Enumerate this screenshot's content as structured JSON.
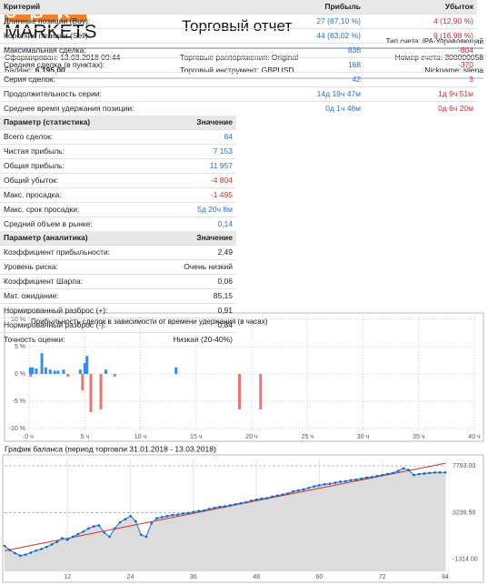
{
  "header": {
    "logo_top": "UBK",
    "logo_bottom": "MARKETS",
    "title": "Торговый отчет",
    "account_type": "Тип счета: iPA-Управляющий"
  },
  "info": {
    "generated": "Сформирован: 13.03.2018 09:44",
    "orders": "Торговые распоряжения: Original",
    "account_number": "Номер счета: 300000058",
    "balance_label": "Баланс:",
    "balance_value": "6 195,00",
    "instrument": "Торговый инструмент: GBPUSD",
    "nickname": "Nickname: silena"
  },
  "summary_table": {
    "header": [
      "Критерий",
      "Прибыль",
      "Убыток"
    ],
    "rows": [
      [
        "Длинные позиции (Buy):",
        "27 (87,10 %)",
        "4 (12,90 %)"
      ],
      [
        "Короткие позиции (Sell):",
        "44 (83,02 %)",
        "9 (16,98 %)"
      ],
      [
        "Максимальная сделка:",
        "836",
        "-804"
      ],
      [
        "Средняя сделка (в пунктах):",
        "168",
        "-370"
      ],
      [
        "Серия сделок:",
        "42",
        "3"
      ],
      [
        "Продолжительность серии:",
        "14д 19ч 47м",
        "1д 9ч 51м"
      ],
      [
        "Среднее время удержания позиции:",
        "0д 1ч 46м",
        "0д 6ч 20м"
      ]
    ]
  },
  "stats_table": {
    "header": [
      "Параметр (статистика)",
      "Значение"
    ],
    "rows": [
      [
        "Всего сделок:",
        "84"
      ],
      [
        "Чистая прибыль:",
        "7 153"
      ],
      [
        "Общая прибыль:",
        "11 957"
      ],
      [
        "Общий убыток:",
        "-4 804"
      ],
      [
        "Макс. просадка:",
        "-1 495"
      ],
      [
        "Макс. срок просадки:",
        "5д 20ч 8м"
      ],
      [
        "Средний объем в рынке:",
        "0,14"
      ]
    ]
  },
  "analytics_table": {
    "header": [
      "Параметр (аналитика)",
      "Значение"
    ],
    "rows": [
      [
        "Коэффициент прибыльности:",
        "2,49"
      ],
      [
        "Уровень риска:",
        "Очень низкий"
      ],
      [
        "Коэффициент Шарпа:",
        "0,06"
      ],
      [
        "Мат. ожидание:",
        "85,15"
      ],
      [
        "Нормированный разброс (+):",
        "0,91"
      ],
      [
        "Нормированный разброс (-):",
        "0,84"
      ],
      [
        "Точность оценки:",
        "Низкая (20-40%)"
      ]
    ]
  },
  "chart_data": [
    {
      "type": "bar",
      "title": "Прибыльность сделок в зависимости от времени удержания (в часах)",
      "xlim": [
        0,
        40
      ],
      "ylim": [
        -10.5,
        10.5
      ],
      "xticks": [
        {
          "value": 0,
          "label": "0 ч"
        },
        {
          "value": 5,
          "label": "5 ч"
        },
        {
          "value": 10,
          "label": "10 ч"
        },
        {
          "value": 15,
          "label": "15 ч"
        },
        {
          "value": 20,
          "label": "20 ч"
        },
        {
          "value": 25,
          "label": "25 ч"
        },
        {
          "value": 30,
          "label": "30 ч"
        },
        {
          "value": 35,
          "label": "35 ч"
        },
        {
          "value": 40,
          "label": "40 ч"
        }
      ],
      "yticks": [
        {
          "value": 10,
          "label": "10 %"
        },
        {
          "value": 5,
          "label": "5 %"
        },
        {
          "value": 0,
          "label": "0 %"
        },
        {
          "value": -5,
          "label": "-5 %"
        },
        {
          "value": -10,
          "label": "-10 %"
        }
      ],
      "grid": true,
      "series": [
        {
          "color": "#3c8ce6",
          "x": [
            0.1,
            0.3,
            0.65,
            1.15,
            1.5,
            1.9,
            2.3,
            2.6,
            3.1,
            4.6,
            5.0,
            5.2,
            6.9,
            13.2
          ],
          "values": [
            1.2,
            1.2,
            1.0,
            3.8,
            1.2,
            0.8,
            0.6,
            0.6,
            0.8,
            0.8,
            2.0,
            3.3,
            0.8,
            1.2
          ]
        },
        {
          "color": "#e87474",
          "x": [
            0.15,
            3.5,
            4.8,
            5.55,
            6.45,
            7.7,
            18.9,
            20.8
          ],
          "values": [
            -0.5,
            -0.5,
            -3,
            -7,
            -6.5,
            -0.5,
            -6.5,
            -6.5
          ]
        }
      ]
    },
    {
      "type": "line",
      "title": "График баланса (период торговли 31.01.2018 - 13.03.2018)",
      "x": [
        0,
        1,
        2,
        3,
        4,
        5,
        6,
        7,
        8,
        9,
        10,
        11,
        12,
        13,
        14,
        15,
        16,
        17,
        18,
        19,
        20,
        21,
        22,
        23,
        24,
        25,
        26,
        27,
        28,
        29,
        30,
        31,
        32,
        33,
        34,
        35,
        36,
        37,
        38,
        39,
        40,
        41,
        42,
        43,
        44,
        45,
        46,
        47,
        48,
        49,
        50,
        51,
        52,
        53,
        54,
        55,
        56,
        57,
        58,
        59,
        60,
        61,
        62,
        63,
        64,
        65,
        66,
        67,
        68,
        69,
        70,
        71,
        72,
        73,
        74,
        75,
        76,
        77,
        78,
        79,
        80,
        81,
        82,
        83,
        84
      ],
      "xlim": [
        0,
        84
      ],
      "xticks": [
        12,
        24,
        36,
        48,
        60,
        72,
        84
      ],
      "ylim": [
        -2475,
        8418
      ],
      "yticks": [
        {
          "value": 7793,
          "label": "7793.00"
        },
        {
          "value": 3239.5,
          "label": "3239.50"
        },
        {
          "value": -1314,
          "label": "-1314.00"
        }
      ],
      "grid": true,
      "trend_color": "#d03030",
      "area_color": "#dcdcdc",
      "series": [
        {
          "color": "#3c8ce6",
          "values": [
            0,
            -400,
            -700,
            -950,
            -850,
            -650,
            -450,
            -300,
            -100,
            150,
            400,
            750,
            600,
            900,
            1150,
            1400,
            1700,
            1900,
            2000,
            1300,
            900,
            1700,
            2300,
            2600,
            2900,
            2400,
            1100,
            900,
            2200,
            2700,
            2800,
            2900,
            3000,
            3050,
            3150,
            3200,
            3300,
            3400,
            3450,
            3600,
            3700,
            3800,
            3850,
            3950,
            4050,
            4150,
            4250,
            4400,
            4500,
            4600,
            4650,
            4800,
            4900,
            5000,
            5100,
            5300,
            5400,
            5500,
            5650,
            5800,
            5900,
            6000,
            6050,
            6150,
            6250,
            6300,
            6400,
            6450,
            6550,
            6650,
            6700,
            6800,
            6900,
            7000,
            7100,
            7300,
            7550,
            7400,
            6900,
            7000,
            7050,
            7100,
            7150,
            7150,
            7153
          ]
        }
      ]
    }
  ]
}
